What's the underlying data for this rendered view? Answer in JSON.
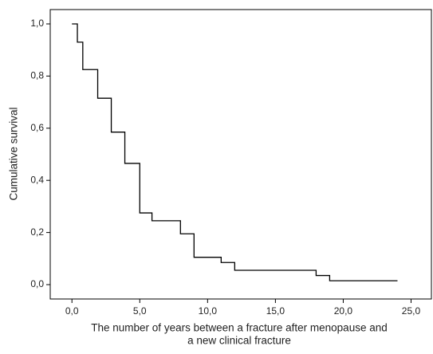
{
  "chart_data": {
    "type": "step",
    "y_label": "Cumulative survival",
    "x_label": [
      "The number of years between a fracture after menopause and",
      "a new clinical fracture"
    ],
    "x": [
      0,
      0.4,
      0.8,
      1.9,
      2.9,
      3.9,
      5,
      5.9,
      8,
      9,
      11,
      12,
      18,
      19,
      24
    ],
    "values": [
      1,
      0.93,
      0.825,
      0.715,
      0.585,
      0.465,
      0.275,
      0.245,
      0.195,
      0.105,
      0.085,
      0.055,
      0.035,
      0.015,
      0.015
    ],
    "color": "#000000",
    "xlim": [
      -1.6,
      26.5
    ],
    "ylim": [
      -0.055,
      1.055
    ],
    "xticks": [
      {
        "value": 0,
        "label": "0,0"
      },
      {
        "value": 5,
        "label": "5,0"
      },
      {
        "value": 10,
        "label": "10,0"
      },
      {
        "value": 15,
        "label": "15,0"
      },
      {
        "value": 20,
        "label": "20,0"
      },
      {
        "value": 25,
        "label": "25,0"
      }
    ],
    "yticks": [
      {
        "value": 0,
        "label": "0,0"
      },
      {
        "value": 0.2,
        "label": "0,2"
      },
      {
        "value": 0.4,
        "label": "0,4"
      },
      {
        "value": 0.6,
        "label": "0,6"
      },
      {
        "value": 0.8,
        "label": "0,8"
      },
      {
        "value": 1,
        "label": "1,0"
      }
    ]
  }
}
